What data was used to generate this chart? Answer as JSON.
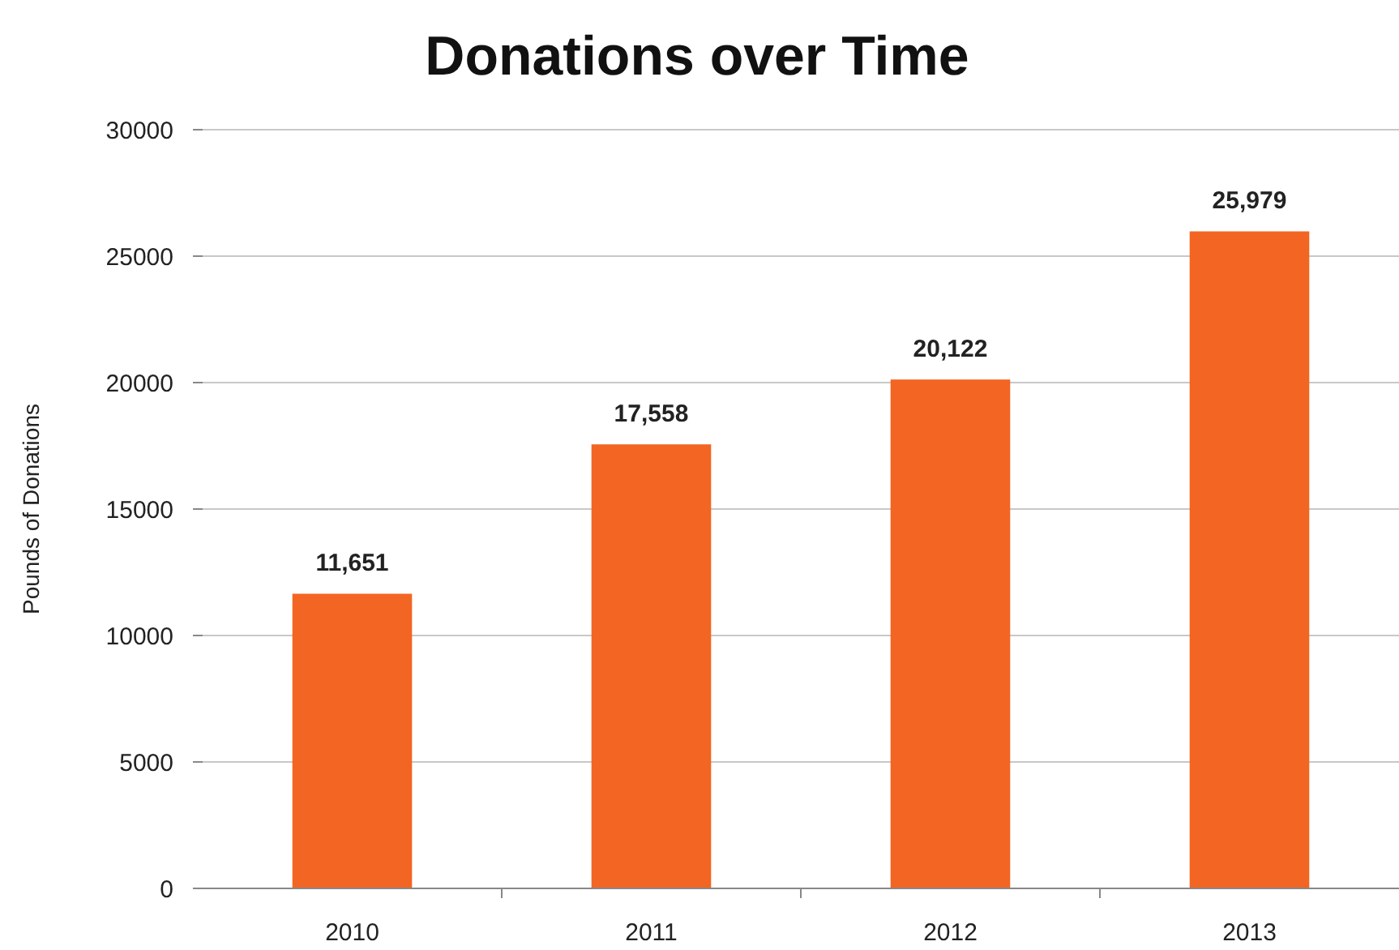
{
  "chart_data": {
    "type": "bar",
    "title": "Donations over Time",
    "ylabel": "Pounds of Donations",
    "categories": [
      "2010",
      "2011",
      "2012",
      "2013"
    ],
    "values": [
      11651,
      17558,
      20122,
      25979
    ],
    "value_labels": [
      "11,651",
      "17,558",
      "20,122",
      "25,979"
    ],
    "color": "#f26522",
    "ylim": [
      0,
      30000
    ],
    "yticks": [
      0,
      5000,
      10000,
      15000,
      20000,
      25000,
      30000
    ],
    "grid": "y"
  }
}
